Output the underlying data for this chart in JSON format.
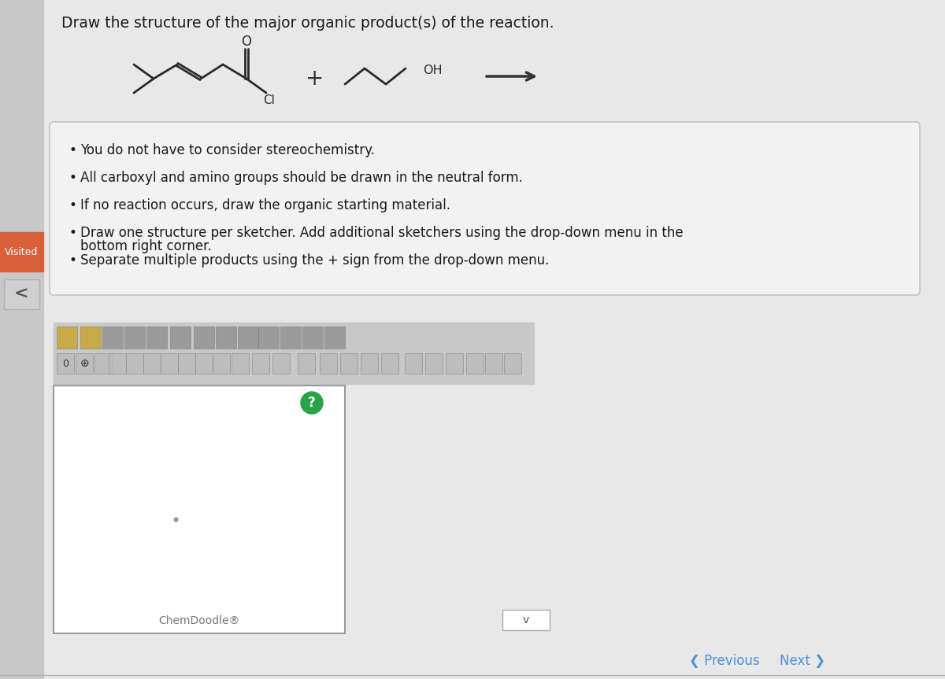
{
  "bg_color": "#d8d8d8",
  "page_bg": "#e8e8e8",
  "title": "Draw the structure of the major organic product(s) of the reaction.",
  "title_fontsize": 13.5,
  "bullet_points": [
    "You do not have to consider stereochemistry.",
    "All carboxyl and amino groups should be drawn in the neutral form.",
    "If no reaction occurs, draw the organic starting material.",
    "Draw one structure per sketcher. Add additional sketchers using the drop-down menu in the bottom right corner.",
    "Separate multiple products using the + sign from the drop-down menu."
  ],
  "bullet_fontsize": 12,
  "left_bar_color": "#d9603b",
  "visited_text": "Visited",
  "prev_next_color": "#4a90d9",
  "chemdoodle_text": "ChemDoodle®",
  "sketcher_bg": "#ffffff",
  "sketcher_border": "#aaaaaa",
  "mol_line_color": "#2a2a2a",
  "mol_lw": 2.0
}
